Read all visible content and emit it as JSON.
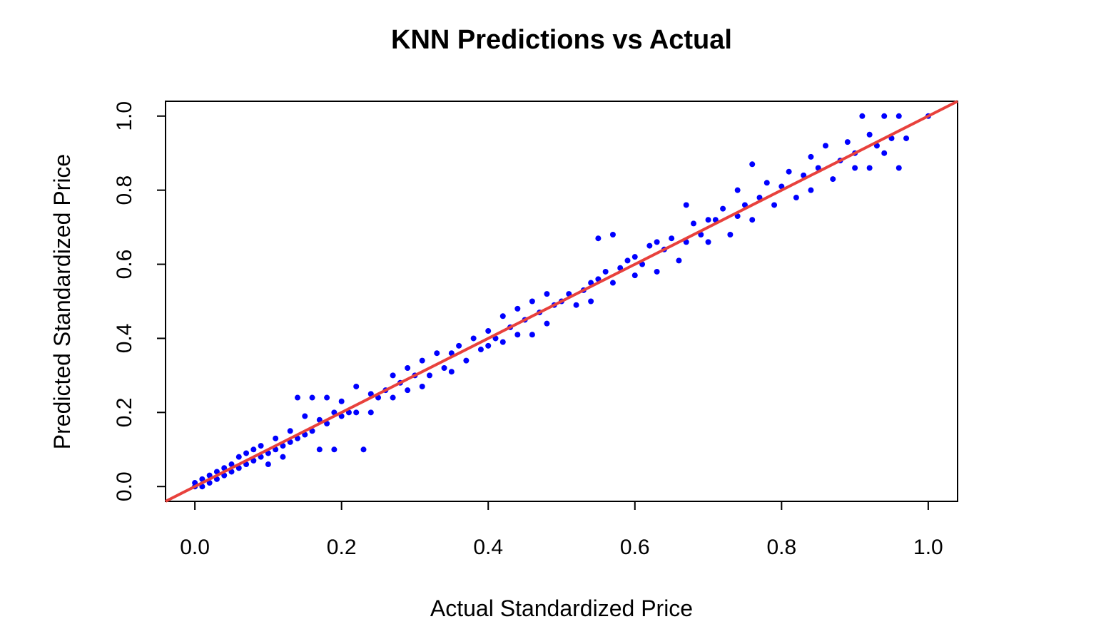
{
  "chart_data": {
    "type": "scatter",
    "title": "KNN Predictions vs Actual",
    "xlabel": "Actual Standardized Price",
    "ylabel": "Predicted Standardized Price",
    "xlim": [
      -0.04,
      1.04
    ],
    "ylim": [
      -0.04,
      1.04
    ],
    "xticks": [
      "0.0",
      "0.2",
      "0.4",
      "0.6",
      "0.8",
      "1.0"
    ],
    "yticks": [
      "0.0",
      "0.2",
      "0.4",
      "0.6",
      "0.8",
      "1.0"
    ],
    "grid": false,
    "legend": "none",
    "point_color": "#0000ff",
    "reference_line": {
      "slope": 1,
      "intercept": 0,
      "color": "#e8413c"
    },
    "points": [
      [
        0.0,
        0.0
      ],
      [
        0.0,
        0.01
      ],
      [
        0.01,
        0.02
      ],
      [
        0.01,
        0.0
      ],
      [
        0.02,
        0.01
      ],
      [
        0.02,
        0.03
      ],
      [
        0.03,
        0.02
      ],
      [
        0.03,
        0.04
      ],
      [
        0.04,
        0.03
      ],
      [
        0.04,
        0.05
      ],
      [
        0.05,
        0.04
      ],
      [
        0.05,
        0.06
      ],
      [
        0.06,
        0.05
      ],
      [
        0.06,
        0.08
      ],
      [
        0.07,
        0.06
      ],
      [
        0.07,
        0.09
      ],
      [
        0.08,
        0.07
      ],
      [
        0.08,
        0.1
      ],
      [
        0.09,
        0.08
      ],
      [
        0.09,
        0.11
      ],
      [
        0.1,
        0.09
      ],
      [
        0.1,
        0.06
      ],
      [
        0.11,
        0.1
      ],
      [
        0.11,
        0.13
      ],
      [
        0.12,
        0.11
      ],
      [
        0.12,
        0.08
      ],
      [
        0.13,
        0.12
      ],
      [
        0.13,
        0.15
      ],
      [
        0.14,
        0.24
      ],
      [
        0.14,
        0.13
      ],
      [
        0.15,
        0.14
      ],
      [
        0.15,
        0.19
      ],
      [
        0.16,
        0.24
      ],
      [
        0.16,
        0.15
      ],
      [
        0.17,
        0.1
      ],
      [
        0.17,
        0.18
      ],
      [
        0.18,
        0.24
      ],
      [
        0.18,
        0.17
      ],
      [
        0.19,
        0.2
      ],
      [
        0.19,
        0.1
      ],
      [
        0.2,
        0.23
      ],
      [
        0.2,
        0.19
      ],
      [
        0.21,
        0.2
      ],
      [
        0.22,
        0.27
      ],
      [
        0.22,
        0.2
      ],
      [
        0.23,
        0.1
      ],
      [
        0.24,
        0.25
      ],
      [
        0.24,
        0.2
      ],
      [
        0.25,
        0.24
      ],
      [
        0.26,
        0.26
      ],
      [
        0.27,
        0.3
      ],
      [
        0.27,
        0.24
      ],
      [
        0.28,
        0.28
      ],
      [
        0.29,
        0.32
      ],
      [
        0.29,
        0.26
      ],
      [
        0.3,
        0.3
      ],
      [
        0.31,
        0.34
      ],
      [
        0.31,
        0.27
      ],
      [
        0.32,
        0.3
      ],
      [
        0.33,
        0.36
      ],
      [
        0.34,
        0.32
      ],
      [
        0.35,
        0.36
      ],
      [
        0.35,
        0.31
      ],
      [
        0.36,
        0.38
      ],
      [
        0.37,
        0.34
      ],
      [
        0.38,
        0.4
      ],
      [
        0.39,
        0.37
      ],
      [
        0.4,
        0.42
      ],
      [
        0.4,
        0.38
      ],
      [
        0.41,
        0.4
      ],
      [
        0.42,
        0.46
      ],
      [
        0.42,
        0.39
      ],
      [
        0.43,
        0.43
      ],
      [
        0.44,
        0.48
      ],
      [
        0.44,
        0.41
      ],
      [
        0.45,
        0.45
      ],
      [
        0.46,
        0.5
      ],
      [
        0.46,
        0.41
      ],
      [
        0.47,
        0.47
      ],
      [
        0.48,
        0.52
      ],
      [
        0.48,
        0.44
      ],
      [
        0.49,
        0.49
      ],
      [
        0.5,
        0.5
      ],
      [
        0.51,
        0.52
      ],
      [
        0.52,
        0.49
      ],
      [
        0.53,
        0.53
      ],
      [
        0.54,
        0.55
      ],
      [
        0.54,
        0.5
      ],
      [
        0.55,
        0.67
      ],
      [
        0.55,
        0.56
      ],
      [
        0.56,
        0.58
      ],
      [
        0.57,
        0.55
      ],
      [
        0.57,
        0.68
      ],
      [
        0.58,
        0.59
      ],
      [
        0.59,
        0.61
      ],
      [
        0.6,
        0.57
      ],
      [
        0.6,
        0.62
      ],
      [
        0.61,
        0.6
      ],
      [
        0.62,
        0.65
      ],
      [
        0.63,
        0.66
      ],
      [
        0.63,
        0.58
      ],
      [
        0.64,
        0.64
      ],
      [
        0.65,
        0.67
      ],
      [
        0.66,
        0.61
      ],
      [
        0.67,
        0.76
      ],
      [
        0.67,
        0.66
      ],
      [
        0.68,
        0.71
      ],
      [
        0.69,
        0.68
      ],
      [
        0.7,
        0.72
      ],
      [
        0.7,
        0.66
      ],
      [
        0.71,
        0.72
      ],
      [
        0.72,
        0.75
      ],
      [
        0.73,
        0.68
      ],
      [
        0.74,
        0.8
      ],
      [
        0.74,
        0.73
      ],
      [
        0.75,
        0.76
      ],
      [
        0.76,
        0.87
      ],
      [
        0.76,
        0.72
      ],
      [
        0.77,
        0.78
      ],
      [
        0.78,
        0.82
      ],
      [
        0.79,
        0.76
      ],
      [
        0.8,
        0.81
      ],
      [
        0.81,
        0.85
      ],
      [
        0.82,
        0.78
      ],
      [
        0.83,
        0.84
      ],
      [
        0.84,
        0.89
      ],
      [
        0.84,
        0.8
      ],
      [
        0.85,
        0.86
      ],
      [
        0.86,
        0.92
      ],
      [
        0.87,
        0.83
      ],
      [
        0.88,
        0.88
      ],
      [
        0.89,
        0.93
      ],
      [
        0.9,
        0.86
      ],
      [
        0.9,
        0.9
      ],
      [
        0.91,
        1.0
      ],
      [
        0.92,
        0.95
      ],
      [
        0.92,
        0.86
      ],
      [
        0.93,
        0.92
      ],
      [
        0.94,
        1.0
      ],
      [
        0.94,
        0.9
      ],
      [
        0.95,
        0.94
      ],
      [
        0.96,
        1.0
      ],
      [
        0.96,
        0.86
      ],
      [
        0.97,
        0.94
      ],
      [
        1.0,
        1.0
      ]
    ]
  }
}
